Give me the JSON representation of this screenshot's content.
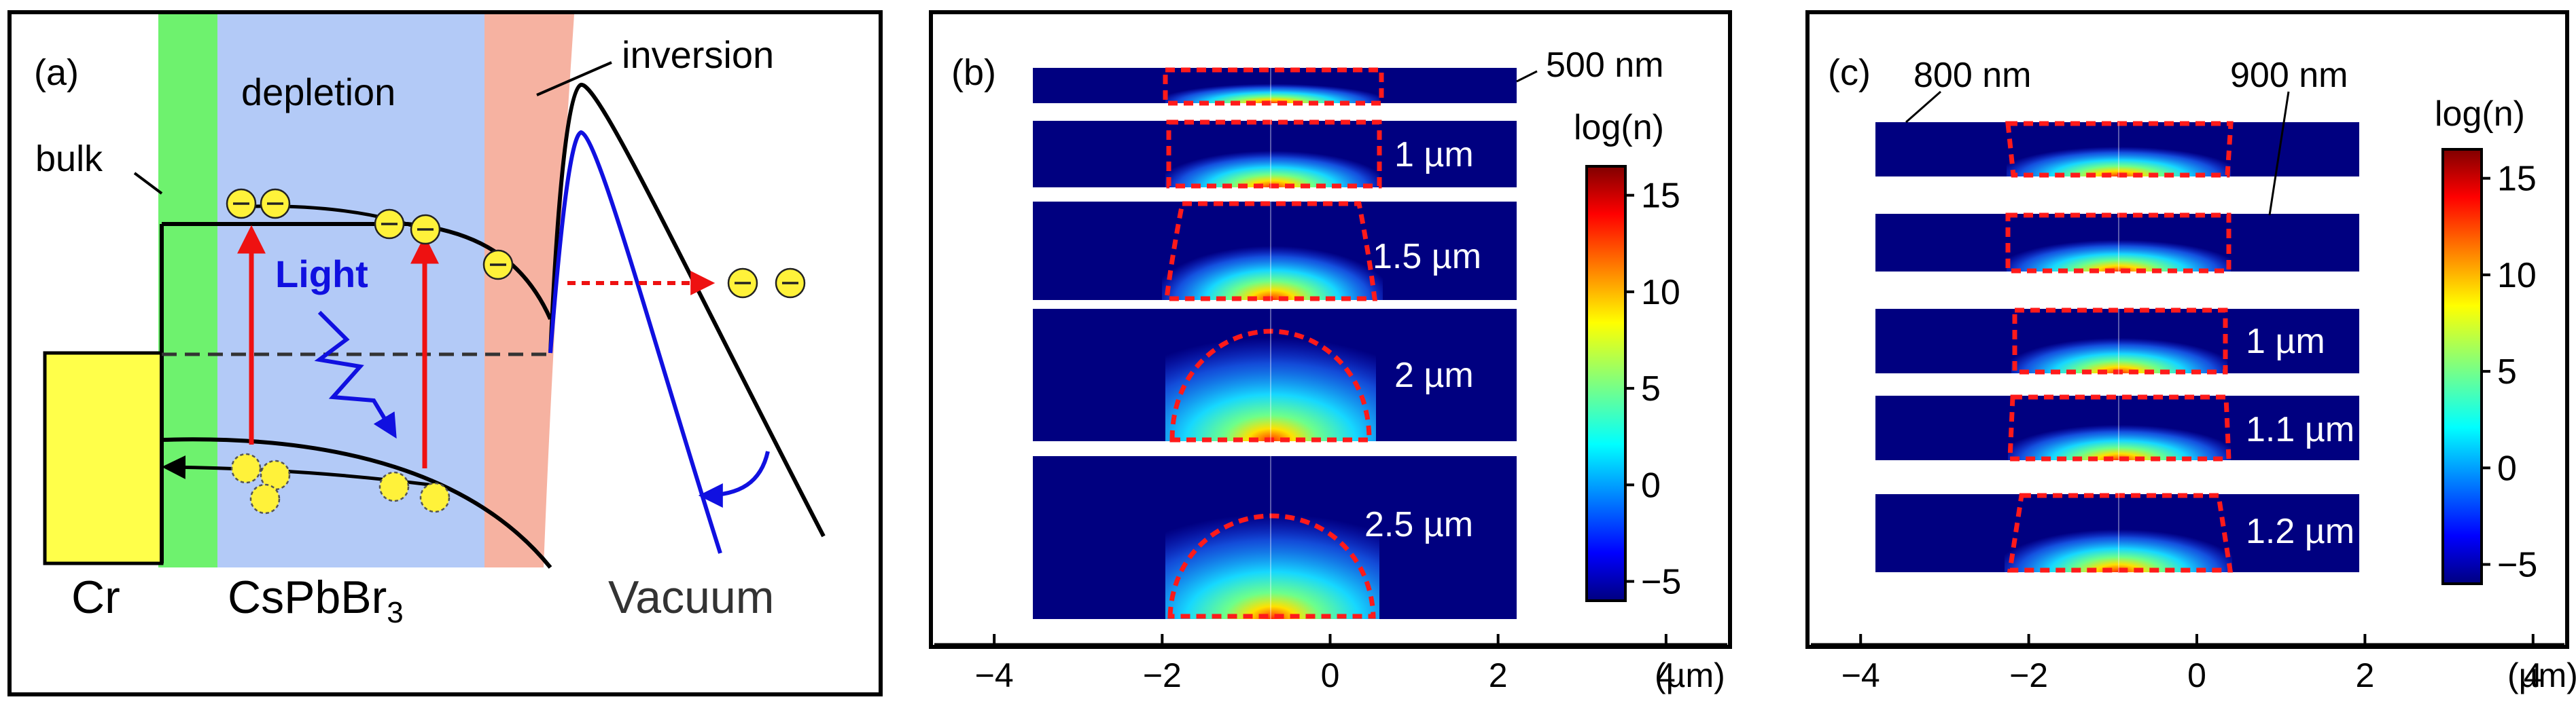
{
  "colors": {
    "bulk": "#6ef26e",
    "depletion": "#b3caf7",
    "inversion": "#f6b2a1",
    "cr_block": "#ffff4a",
    "band": "#000000",
    "vacuum_level_blue": "#1010e0",
    "arrow_red": "#ee1111",
    "dashed_frame": "#ff1a1a",
    "electron_fill": "#fff23a",
    "colormap_dark": "#000080"
  },
  "panel_a": {
    "label": "(a)",
    "bulk": "bulk",
    "depletion": "depletion",
    "inversion": "inversion",
    "light": "Light",
    "cr": "Cr",
    "material_main": "CsPbBr",
    "material_sub": "3",
    "vacuum": "Vacuum",
    "electron_symbol": "⊖"
  },
  "panel_b": {
    "label": "(b)",
    "strip_labels": [
      "500 nm",
      "1 µm",
      "1.5 µm",
      "2 µm",
      "2.5 µm"
    ],
    "colorbar_title": "log(n)",
    "colorbar_ticks": [
      "15",
      "10",
      "5",
      "0",
      "−5"
    ],
    "colorbar_range": [
      -6,
      16.5
    ],
    "x_ticks": [
      "−4",
      "−2",
      "0",
      "2",
      "4"
    ],
    "x_range": [
      -4.6,
      4.6
    ],
    "x_unit": "(µm)"
  },
  "panel_c": {
    "label": "(c)",
    "annot_left": "800 nm",
    "annot_right": "900 nm",
    "strip_labels": [
      "1 µm",
      "1.1 µm",
      "1.2 µm"
    ],
    "colorbar_title": "log(n)",
    "colorbar_ticks": [
      "15",
      "10",
      "5",
      "0",
      "−5"
    ],
    "colorbar_range": [
      -6,
      16.5
    ],
    "x_ticks": [
      "−4",
      "−2",
      "0",
      "2",
      "4"
    ],
    "x_range": [
      -4.6,
      4.6
    ],
    "x_unit": "(µm)"
  }
}
